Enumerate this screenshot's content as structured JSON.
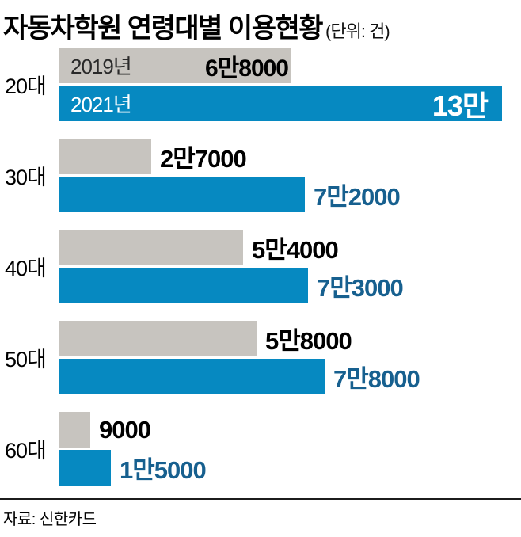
{
  "title": "자동차학원 연령대별 이용현황",
  "unit_note": "(단위: 건)",
  "source": "자료: 신한카드",
  "colors": {
    "bar_2019": "#c7c4bf",
    "bar_2021": "#0689c1",
    "value_text_2019": "#000000",
    "value_text_2021": "#17608f",
    "inbar_label_2019": "#2a2a2a",
    "inbar_label_2021": "#ffffff"
  },
  "chart_data": {
    "type": "bar",
    "orientation": "horizontal",
    "title": "자동차학원 연령대별 이용현황",
    "unit": "건",
    "categories": [
      "20대",
      "30대",
      "40대",
      "50대",
      "60대"
    ],
    "series": [
      {
        "name": "2019년",
        "values": [
          68000,
          27000,
          54000,
          58000,
          9000
        ],
        "labels": [
          "6만8000",
          "2만7000",
          "5만4000",
          "5만8000",
          "9000"
        ]
      },
      {
        "name": "2021년",
        "values": [
          130000,
          72000,
          73000,
          78000,
          15000
        ],
        "labels": [
          "13만",
          "7만2000",
          "7만3000",
          "7만8000",
          "1만5000"
        ]
      }
    ],
    "xlim": [
      0,
      130000
    ],
    "legend_position": "inside-first-group-bars",
    "grid": false
  }
}
